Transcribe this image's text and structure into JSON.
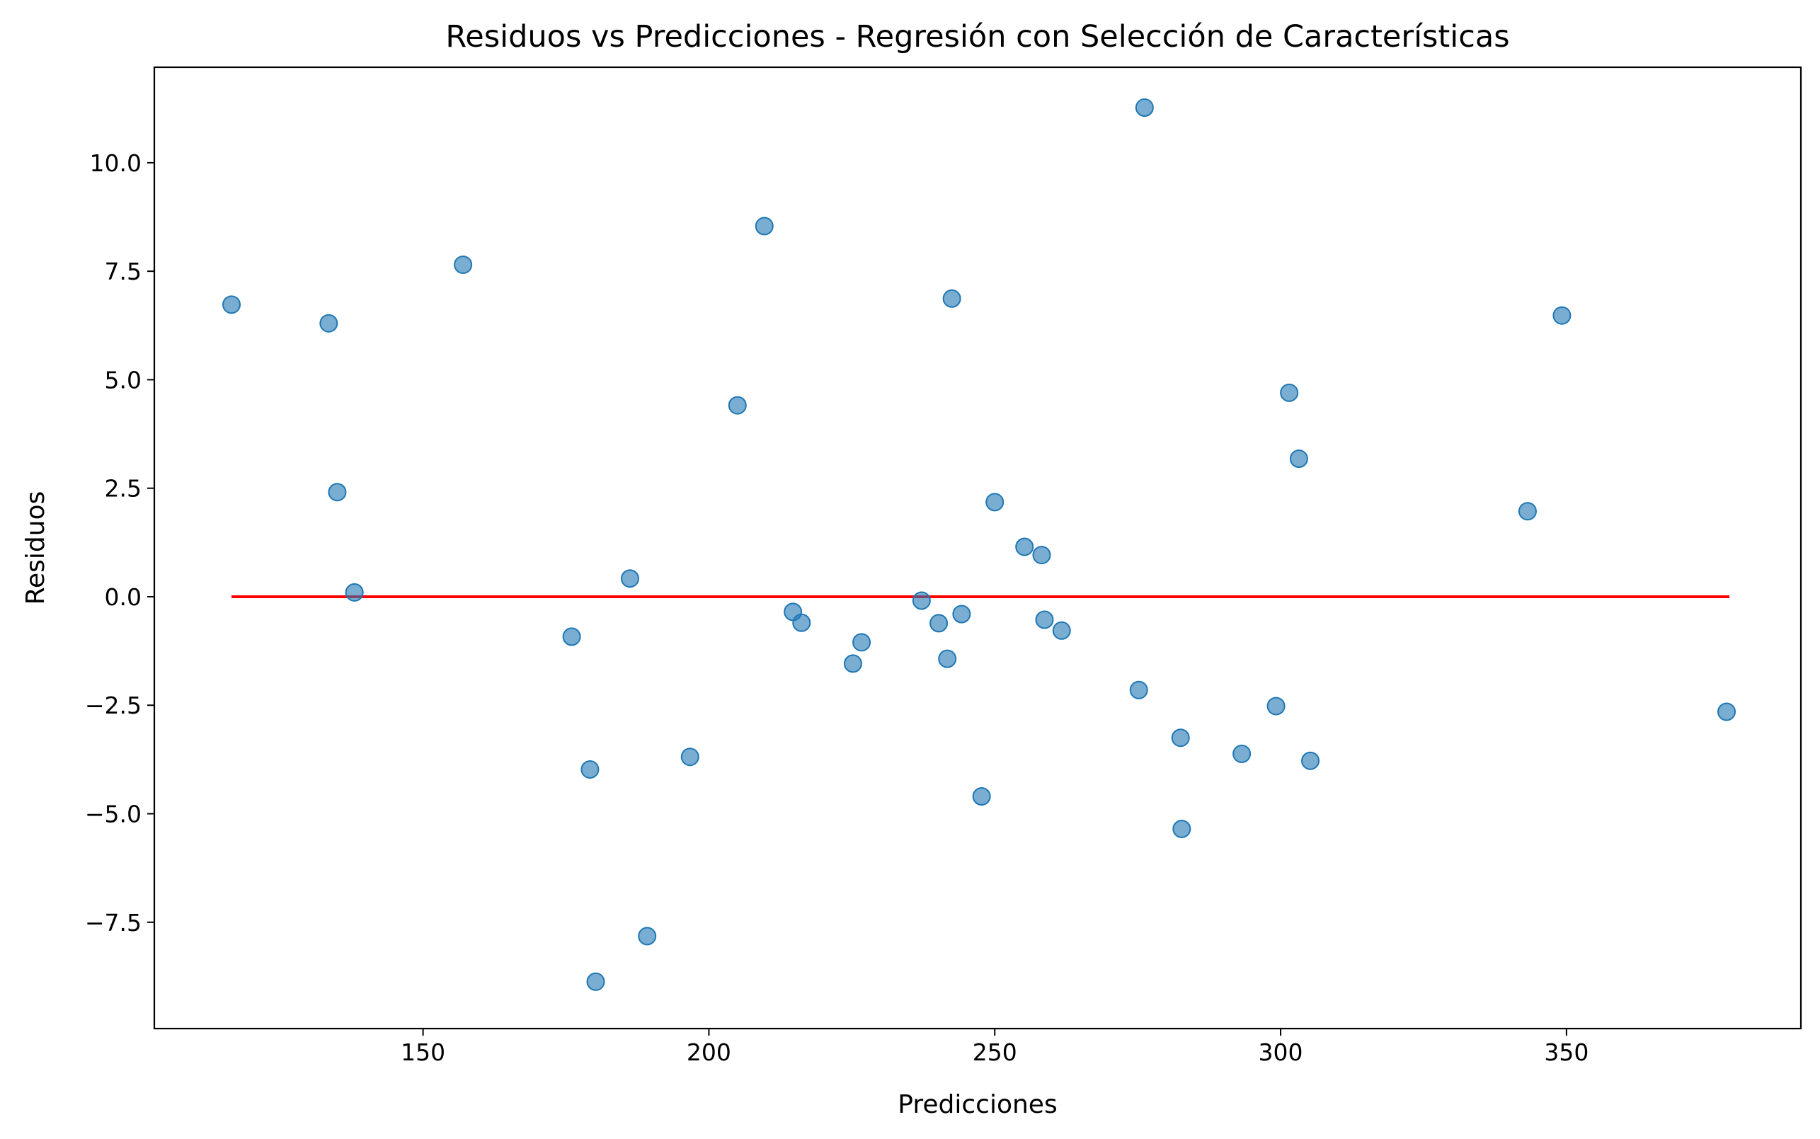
{
  "chart_data": {
    "type": "scatter",
    "title": "Residuos vs Predicciones - Regresión con Selección de Características",
    "xlabel": "Predicciones",
    "ylabel": "Residuos",
    "xlim": [
      103,
      391
    ],
    "ylim": [
      -9.95,
      12.2
    ],
    "xticks": [
      150,
      200,
      250,
      300,
      350
    ],
    "xtick_labels": [
      "150",
      "200",
      "250",
      "300",
      "350"
    ],
    "yticks": [
      -7.5,
      -5.0,
      -2.5,
      0.0,
      2.5,
      5.0,
      7.5,
      10.0
    ],
    "ytick_labels": [
      "−7.5",
      "−5.0",
      "−2.5",
      "0.0",
      "2.5",
      "5.0",
      "7.5",
      "10.0"
    ],
    "grid": false,
    "point_color": "#1f77b4",
    "reference_line": {
      "y": 0.0,
      "x_range": [
        116.5,
        378.5
      ],
      "color": "#ff0000"
    },
    "points": [
      {
        "x": 116.5,
        "y": 6.73
      },
      {
        "x": 133.5,
        "y": 6.3
      },
      {
        "x": 135.0,
        "y": 2.41
      },
      {
        "x": 138.0,
        "y": 0.1
      },
      {
        "x": 157.0,
        "y": 7.65
      },
      {
        "x": 176.0,
        "y": -0.92
      },
      {
        "x": 179.2,
        "y": -3.98
      },
      {
        "x": 180.2,
        "y": -8.87
      },
      {
        "x": 186.2,
        "y": 0.42
      },
      {
        "x": 189.2,
        "y": -7.82
      },
      {
        "x": 196.7,
        "y": -3.69
      },
      {
        "x": 205.0,
        "y": 4.41
      },
      {
        "x": 209.7,
        "y": 8.54
      },
      {
        "x": 214.7,
        "y": -0.35
      },
      {
        "x": 216.2,
        "y": -0.6
      },
      {
        "x": 225.2,
        "y": -1.54
      },
      {
        "x": 226.7,
        "y": -1.05
      },
      {
        "x": 237.2,
        "y": -0.09
      },
      {
        "x": 240.2,
        "y": -0.61
      },
      {
        "x": 241.7,
        "y": -1.43
      },
      {
        "x": 242.5,
        "y": 6.87
      },
      {
        "x": 244.2,
        "y": -0.4
      },
      {
        "x": 247.7,
        "y": -4.6
      },
      {
        "x": 250.0,
        "y": 2.18
      },
      {
        "x": 255.2,
        "y": 1.15
      },
      {
        "x": 258.2,
        "y": 0.96
      },
      {
        "x": 258.7,
        "y": -0.53
      },
      {
        "x": 261.7,
        "y": -0.78
      },
      {
        "x": 275.2,
        "y": -2.15
      },
      {
        "x": 276.2,
        "y": 11.27
      },
      {
        "x": 282.5,
        "y": -3.25
      },
      {
        "x": 282.7,
        "y": -5.35
      },
      {
        "x": 293.2,
        "y": -3.62
      },
      {
        "x": 299.2,
        "y": -2.52
      },
      {
        "x": 301.5,
        "y": 4.7
      },
      {
        "x": 303.2,
        "y": 3.18
      },
      {
        "x": 305.2,
        "y": -3.78
      },
      {
        "x": 343.2,
        "y": 1.97
      },
      {
        "x": 349.2,
        "y": 6.48
      },
      {
        "x": 378.0,
        "y": -2.65
      }
    ]
  }
}
